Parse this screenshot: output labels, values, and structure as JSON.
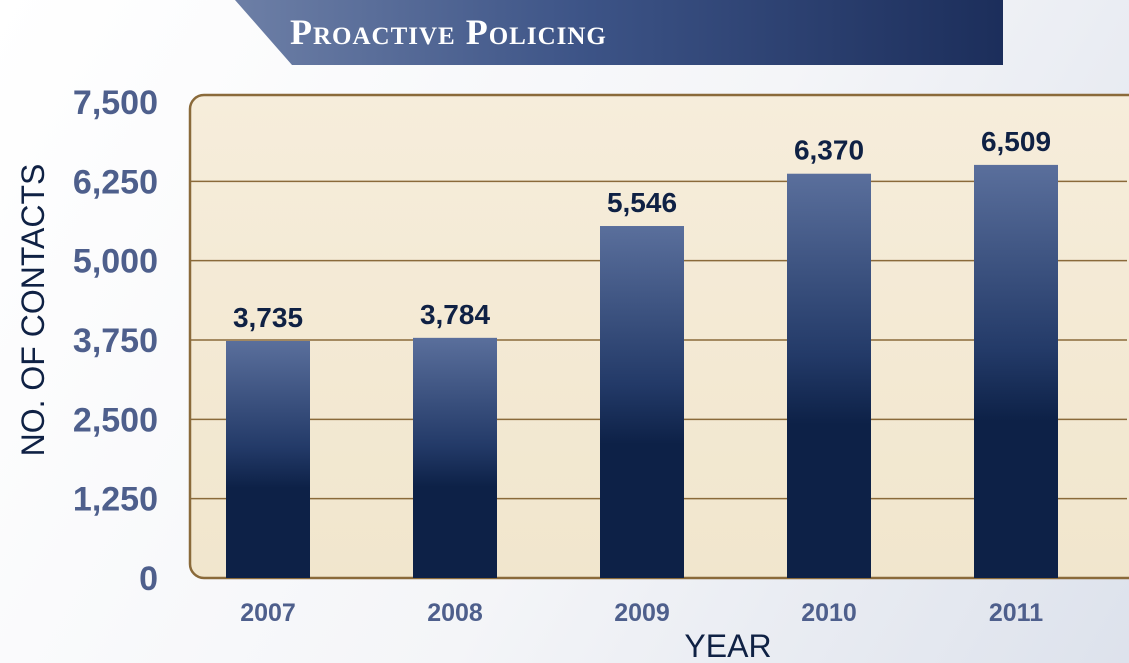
{
  "header": {
    "title": "Proactive Policing"
  },
  "chart_data": {
    "type": "bar",
    "title": "Proactive Policing",
    "xlabel": "YEAR",
    "ylabel": "NO. OF CONTACTS",
    "categories": [
      "2007",
      "2008",
      "2009",
      "2010",
      "2011"
    ],
    "values": [
      3735,
      3784,
      5546,
      6370,
      6509
    ],
    "value_labels": [
      "3,735",
      "3,784",
      "5,546",
      "6,370",
      "6,509"
    ],
    "ylim": [
      0,
      7500
    ],
    "yticks": [
      0,
      1250,
      2500,
      3750,
      5000,
      6250,
      7500
    ],
    "ytick_labels": [
      "0",
      "1,250",
      "2,500",
      "3,750",
      "5,000",
      "6,250",
      "7,500"
    ],
    "grid": true,
    "legend": "none",
    "colors": {
      "bar_top": "#5a6f9c",
      "bar_bottom": "#0d2147",
      "plot_background": "#f4ead5",
      "plot_border": "#8a6a3a",
      "gridline": "#8a6a3a",
      "banner": "#3d5487"
    }
  }
}
